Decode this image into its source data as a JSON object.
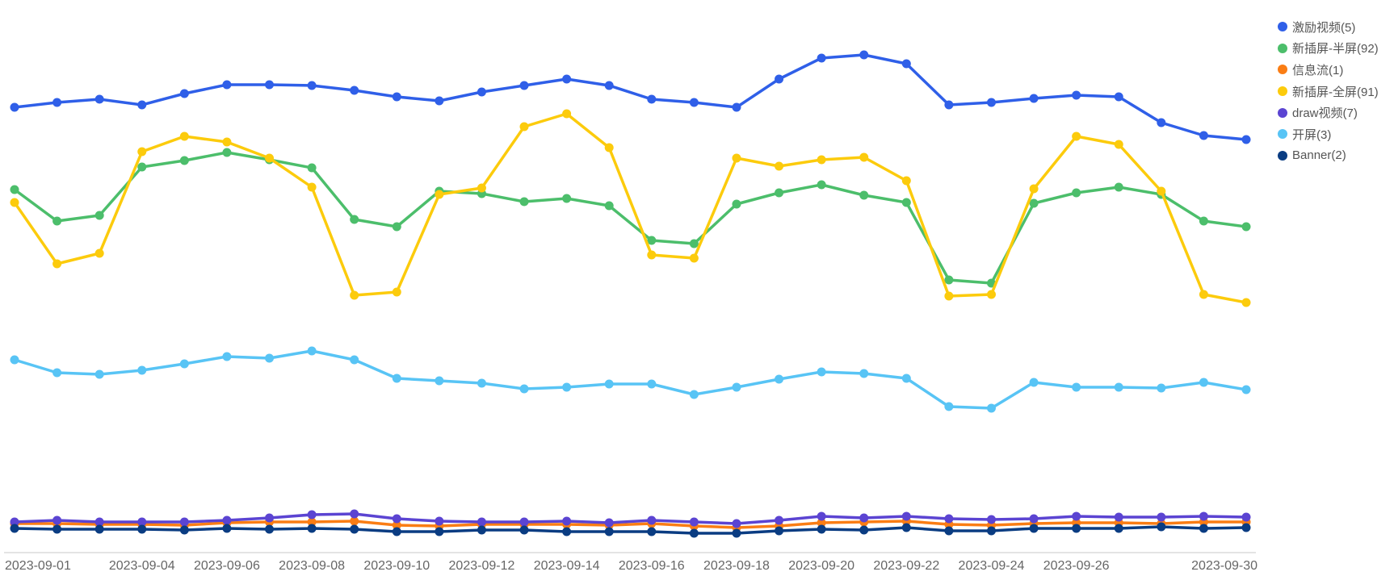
{
  "chart_data": {
    "type": "line",
    "title": "",
    "xlabel": "",
    "ylabel": "",
    "grid": false,
    "legend_position": "right",
    "x": [
      "2023-09-01",
      "2023-09-02",
      "2023-09-03",
      "2023-09-04",
      "2023-09-05",
      "2023-09-06",
      "2023-09-07",
      "2023-09-08",
      "2023-09-09",
      "2023-09-10",
      "2023-09-11",
      "2023-09-12",
      "2023-09-13",
      "2023-09-14",
      "2023-09-15",
      "2023-09-16",
      "2023-09-17",
      "2023-09-18",
      "2023-09-19",
      "2023-09-20",
      "2023-09-21",
      "2023-09-22",
      "2023-09-23",
      "2023-09-24",
      "2023-09-25",
      "2023-09-26",
      "2023-09-27",
      "2023-09-28",
      "2023-09-29",
      "2023-09-30"
    ],
    "x_tick_labels": [
      "2023-09-01",
      "2023-09-04",
      "2023-09-06",
      "2023-09-08",
      "2023-09-10",
      "2023-09-12",
      "2023-09-14",
      "2023-09-16",
      "2023-09-18",
      "2023-09-20",
      "2023-09-22",
      "2023-09-24",
      "2023-09-26",
      "2023-09-30"
    ],
    "ylim": [
      0,
      630
    ],
    "series": [
      {
        "name": "激励视频(5)",
        "color": "#2f5fe8",
        "values": [
          552,
          558,
          562,
          555,
          569,
          580,
          580,
          579,
          573,
          565,
          560,
          571,
          579,
          587,
          579,
          562,
          558,
          552,
          587,
          613,
          617,
          606,
          555,
          558,
          563,
          567,
          565,
          533,
          517,
          512
        ]
      },
      {
        "name": "新插屏-半屏(92)",
        "color": "#4cbe6b",
        "values": [
          450,
          411,
          418,
          478,
          486,
          496,
          487,
          477,
          413,
          404,
          448,
          445,
          435,
          439,
          430,
          387,
          383,
          432,
          446,
          456,
          443,
          434,
          338,
          334,
          433,
          446,
          453,
          444,
          411,
          404
        ]
      },
      {
        "name": "信息流(1)",
        "color": "#fa7d14",
        "values": [
          36,
          36,
          35,
          35,
          34,
          37,
          38,
          38,
          39,
          34,
          33,
          35,
          35,
          35,
          34,
          36,
          33,
          31,
          33,
          37,
          38,
          39,
          35,
          34,
          36,
          37,
          37,
          36,
          38,
          38
        ]
      },
      {
        "name": "新插屏-全屏(91)",
        "color": "#fccb0c",
        "values": [
          434,
          358,
          371,
          497,
          516,
          509,
          489,
          453,
          319,
          323,
          444,
          452,
          528,
          544,
          502,
          369,
          365,
          489,
          479,
          487,
          490,
          461,
          318,
          320,
          451,
          516,
          506,
          448,
          320,
          310
        ]
      },
      {
        "name": "draw视频(7)",
        "color": "#5b44d2",
        "values": [
          38,
          40,
          38,
          38,
          38,
          40,
          43,
          47,
          48,
          42,
          39,
          38,
          38,
          39,
          37,
          40,
          38,
          36,
          40,
          45,
          43,
          45,
          42,
          41,
          42,
          45,
          44,
          44,
          45,
          44
        ]
      },
      {
        "name": "开屏(3)",
        "color": "#58c4f5",
        "values": [
          239,
          223,
          221,
          226,
          234,
          243,
          241,
          250,
          239,
          216,
          213,
          210,
          203,
          205,
          209,
          209,
          196,
          205,
          215,
          224,
          222,
          216,
          181,
          179,
          211,
          205,
          205,
          204,
          211,
          202
        ]
      },
      {
        "name": "Banner(2)",
        "color": "#0a3c82",
        "values": [
          30,
          29,
          29,
          29,
          28,
          30,
          29,
          30,
          29,
          26,
          26,
          28,
          28,
          26,
          26,
          26,
          24,
          24,
          27,
          29,
          28,
          31,
          27,
          27,
          30,
          30,
          30,
          32,
          30,
          31
        ]
      }
    ]
  }
}
